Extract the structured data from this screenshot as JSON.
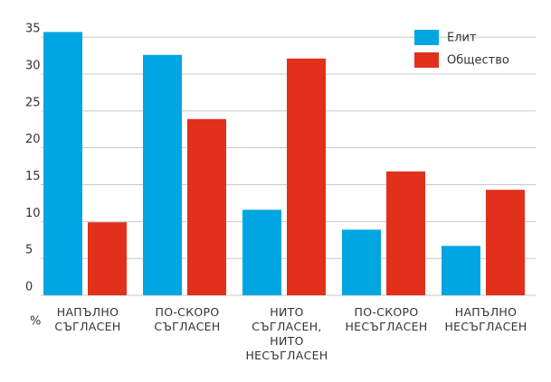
{
  "chart_data": {
    "type": "bar",
    "y_label": "%",
    "categories": [
      "НАПЪЛНО\nСЪГЛАСЕН",
      "ПО-СКОРО\nСЪГЛАСЕН",
      "НИТО\nСЪГЛАСЕН,\nНИТО\nНЕСЪГЛАСЕН",
      "ПО-СКОРО\nНЕСЪГЛАСЕН",
      "НАПЪЛНО\nНЕСЪГЛАСЕН"
    ],
    "series": [
      {
        "name": "Елит",
        "color": "#00a6e2",
        "values": [
          35.7,
          32.6,
          11.6,
          8.9,
          6.7
        ]
      },
      {
        "name": "Общество",
        "color": "#e2301a",
        "values": [
          9.9,
          23.9,
          32.1,
          16.8,
          14.3
        ]
      }
    ],
    "ylim": [
      0,
      36
    ],
    "yticks": [
      0,
      5,
      10,
      15,
      20,
      25,
      30,
      35
    ],
    "grid": true,
    "legend": "top-right"
  }
}
